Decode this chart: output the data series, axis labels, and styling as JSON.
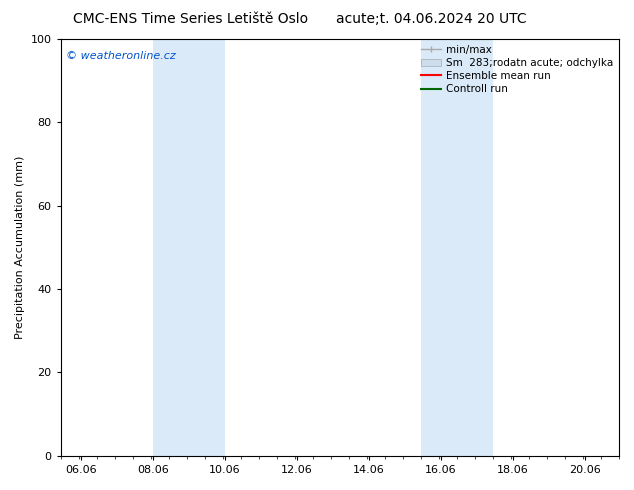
{
  "title_left": "CMC-ENS Time Series Letiště Oslo",
  "title_right": "acute;t. 04.06.2024 20 UTC",
  "ylabel": "Precipitation Accumulation (mm)",
  "watermark": "© weatheronline.cz",
  "watermark_color": "#0055cc",
  "ylim": [
    0,
    100
  ],
  "xlim_start": 5.5,
  "xlim_end": 21.0,
  "xticks": [
    6.06,
    8.06,
    10.06,
    12.06,
    14.06,
    16.06,
    18.06,
    20.06
  ],
  "xtick_labels": [
    "06.06",
    "08.06",
    "10.06",
    "12.06",
    "14.06",
    "16.06",
    "18.06",
    "20.06"
  ],
  "yticks": [
    0,
    20,
    40,
    60,
    80,
    100
  ],
  "shaded_regions": [
    {
      "x_start": 8.06,
      "x_end": 10.06,
      "color": "#daeaf8"
    },
    {
      "x_start": 15.5,
      "x_end": 17.5,
      "color": "#daeaf8"
    }
  ],
  "legend_entries": [
    {
      "label": "min/max",
      "color": "#aaaaaa",
      "type": "minmax"
    },
    {
      "label": "Sm  283;rodatn acute; odchylka",
      "color": "#ccdded",
      "type": "band"
    },
    {
      "label": "Ensemble mean run",
      "color": "#ff0000",
      "type": "line"
    },
    {
      "label": "Controll run",
      "color": "#006600",
      "type": "line"
    }
  ],
  "bg_color": "#ffffff",
  "plot_bg_color": "#ffffff",
  "axis_color": "#000000",
  "tick_label_fontsize": 8,
  "title_fontsize": 10,
  "ylabel_fontsize": 8,
  "legend_fontsize": 7.5
}
